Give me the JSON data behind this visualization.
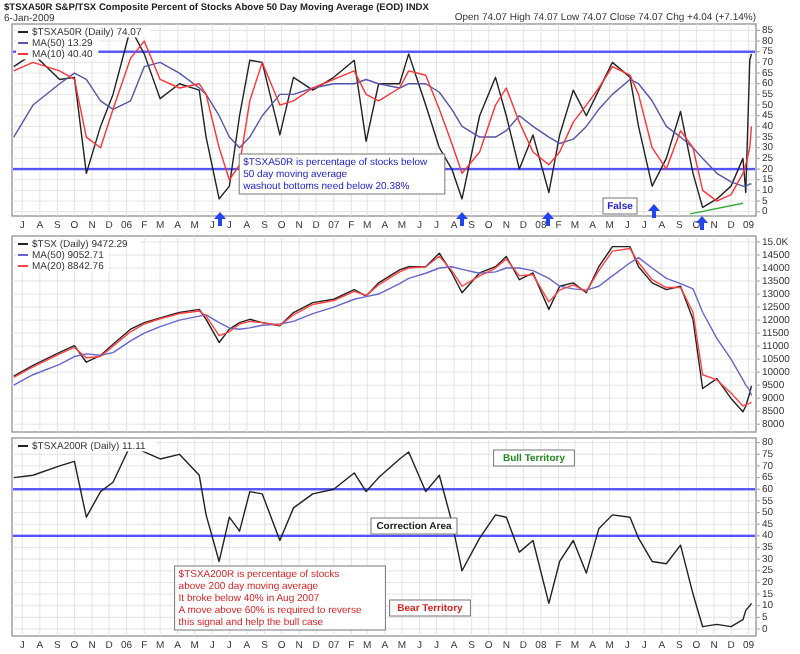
{
  "chart_data": [
    {
      "type": "line",
      "title": "$TSXA50R S&P/TSX Composite Percent of Stocks Above 50 Day Moving Average (EOD) INDX",
      "subtitle": "6-Jan-2009",
      "annotations": [
        "Open 74.07 High 74.07 Low 74.07 Close 74.07 Chg +4.04 (+7.14%)",
        "$TSXA50R is percentage of stocks below\n50 day moving average\nwashout bottoms need below 20.38%",
        "False"
      ],
      "x": [
        "2005-06-16",
        "2005-07-20",
        "2005-09-05",
        "2005-10-01",
        "2005-10-22",
        "2005-11-16",
        "2005-12-08",
        "2006-01-08",
        "2006-02-01",
        "2006-03-01",
        "2006-04-04",
        "2006-05-09",
        "2006-05-21",
        "2006-06-13",
        "2006-07-01",
        "2006-07-19",
        "2006-08-06",
        "2006-08-28",
        "2006-09-28",
        "2006-10-22",
        "2006-11-25",
        "2007-01-01",
        "2007-02-06",
        "2007-02-27",
        "2007-03-21",
        "2007-04-27",
        "2007-05-13",
        "2007-06-12",
        "2007-07-06",
        "2007-07-28",
        "2007-08-15",
        "2007-09-15",
        "2007-10-13",
        "2007-11-01",
        "2007-11-24",
        "2007-12-18",
        "2008-01-15",
        "2008-02-03",
        "2008-02-27",
        "2008-03-21",
        "2008-04-12",
        "2008-05-06",
        "2008-06-06",
        "2008-06-21",
        "2008-07-15",
        "2008-08-09",
        "2008-09-03",
        "2008-09-25",
        "2008-10-12",
        "2008-11-06",
        "2008-12-01",
        "2008-12-22",
        "2008-12-27",
        "2009-01-03",
        "2009-01-06"
      ],
      "series": [
        {
          "name": "$TSXA50R (Daily) 74.07",
          "color": "#222222",
          "values": [
            68,
            74,
            62,
            63,
            18,
            40,
            55,
            86,
            74,
            53,
            60,
            57,
            35,
            6,
            12,
            45,
            71,
            70,
            36,
            63,
            57,
            63,
            71,
            33,
            60,
            60,
            74,
            50,
            30,
            20,
            6,
            45,
            63,
            45,
            20,
            36,
            9,
            36,
            57,
            45,
            57,
            70,
            63,
            40,
            12,
            25,
            47,
            18,
            2,
            6,
            12,
            25,
            9,
            71,
            74
          ]
        },
        {
          "name": "MA(50) 13.29",
          "color": "#5555aa",
          "values": [
            35,
            50,
            60,
            65,
            62,
            52,
            48,
            52,
            68,
            70,
            65,
            58,
            55,
            45,
            35,
            30,
            35,
            45,
            55,
            55,
            58,
            60,
            60,
            62,
            60,
            58,
            60,
            60,
            56,
            48,
            40,
            35,
            35,
            38,
            45,
            40,
            35,
            32,
            34,
            40,
            48,
            55,
            62,
            60,
            52,
            40,
            35,
            30,
            25,
            18,
            14,
            12,
            12,
            13,
            13
          ]
        },
        {
          "name": "MA(10) 40.40",
          "color": "#ff3333",
          "values": [
            66,
            70,
            66,
            62,
            35,
            30,
            48,
            72,
            80,
            62,
            58,
            60,
            55,
            30,
            15,
            22,
            52,
            70,
            50,
            52,
            58,
            62,
            66,
            55,
            52,
            58,
            66,
            64,
            48,
            32,
            18,
            28,
            50,
            58,
            42,
            28,
            22,
            28,
            42,
            50,
            58,
            68,
            64,
            55,
            30,
            20,
            38,
            30,
            10,
            5,
            8,
            18,
            22,
            30,
            40
          ]
        },
        {
          "type": "line",
          "color": "#33aa33",
          "x": [
            "2008-09-20",
            "2008-12-22"
          ],
          "values": [
            -1,
            4
          ]
        }
      ],
      "xlim": [
        "2005-06-13",
        "2009-01-14"
      ],
      "ylim": [
        -2,
        88
      ],
      "xticks": [
        {
          "value": "2005-07-01",
          "label": "J"
        },
        {
          "value": "2005-08-01",
          "label": "A"
        },
        {
          "value": "2005-09-01",
          "label": "S"
        },
        {
          "value": "2005-10-01",
          "label": "O"
        },
        {
          "value": "2005-11-01",
          "label": "N"
        },
        {
          "value": "2005-12-01",
          "label": "D"
        },
        {
          "value": "2006-01-01",
          "label": "06"
        },
        {
          "value": "2006-02-01",
          "label": "F"
        },
        {
          "value": "2006-03-01",
          "label": "M"
        },
        {
          "value": "2006-04-01",
          "label": "A"
        },
        {
          "value": "2006-05-01",
          "label": "M"
        },
        {
          "value": "2006-06-01",
          "label": "J"
        },
        {
          "value": "2006-07-01",
          "label": "J"
        },
        {
          "value": "2006-08-01",
          "label": "A"
        },
        {
          "value": "2006-09-01",
          "label": "S"
        },
        {
          "value": "2006-10-01",
          "label": "O"
        },
        {
          "value": "2006-11-01",
          "label": "N"
        },
        {
          "value": "2006-12-01",
          "label": "D"
        },
        {
          "value": "2007-01-01",
          "label": "07"
        },
        {
          "value": "2007-02-01",
          "label": "F"
        },
        {
          "value": "2007-03-01",
          "label": "M"
        },
        {
          "value": "2007-04-01",
          "label": "A"
        },
        {
          "value": "2007-05-01",
          "label": "M"
        },
        {
          "value": "2007-06-01",
          "label": "J"
        },
        {
          "value": "2007-07-01",
          "label": "J"
        },
        {
          "value": "2007-08-01",
          "label": "A"
        },
        {
          "value": "2007-09-01",
          "label": "S"
        },
        {
          "value": "2007-10-01",
          "label": "O"
        },
        {
          "value": "2007-11-01",
          "label": "N"
        },
        {
          "value": "2007-12-01",
          "label": "D"
        },
        {
          "value": "2008-01-01",
          "label": "08"
        },
        {
          "value": "2008-02-01",
          "label": "F"
        },
        {
          "value": "2008-03-01",
          "label": "M"
        },
        {
          "value": "2008-04-01",
          "label": "A"
        },
        {
          "value": "2008-05-01",
          "label": "M"
        },
        {
          "value": "2008-06-01",
          "label": "J"
        },
        {
          "value": "2008-07-01",
          "label": "J"
        },
        {
          "value": "2008-08-01",
          "label": "A"
        },
        {
          "value": "2008-09-01",
          "label": "S"
        },
        {
          "value": "2008-10-01",
          "label": "O"
        },
        {
          "value": "2008-11-01",
          "label": "N"
        },
        {
          "value": "2008-12-01",
          "label": "D"
        },
        {
          "value": "2009-01-01",
          "label": "09"
        }
      ],
      "yticks": [
        0,
        5,
        10,
        15,
        20,
        25,
        30,
        35,
        40,
        45,
        50,
        55,
        60,
        65,
        70,
        75,
        80,
        85
      ],
      "ref_lines": [
        {
          "axis": "y",
          "value": 75,
          "color": "#5555ff"
        },
        {
          "axis": "y",
          "value": 20,
          "color": "#5555ff"
        }
      ],
      "grid": true,
      "legend": "top left"
    },
    {
      "type": "line",
      "x": [
        "2005-06-16",
        "2005-07-20",
        "2005-09-05",
        "2005-10-01",
        "2005-10-22",
        "2005-11-16",
        "2005-12-08",
        "2006-01-08",
        "2006-02-01",
        "2006-03-01",
        "2006-04-04",
        "2006-05-09",
        "2006-05-21",
        "2006-06-13",
        "2006-07-01",
        "2006-07-19",
        "2006-08-06",
        "2006-08-28",
        "2006-09-28",
        "2006-10-22",
        "2006-11-25",
        "2007-01-01",
        "2007-02-06",
        "2007-02-27",
        "2007-03-21",
        "2007-04-27",
        "2007-05-13",
        "2007-06-12",
        "2007-07-06",
        "2007-07-28",
        "2007-08-15",
        "2007-09-15",
        "2007-10-13",
        "2007-11-01",
        "2007-11-24",
        "2007-12-18",
        "2008-01-15",
        "2008-02-03",
        "2008-02-27",
        "2008-03-21",
        "2008-04-12",
        "2008-05-06",
        "2008-06-06",
        "2008-06-21",
        "2008-07-15",
        "2008-08-09",
        "2008-09-03",
        "2008-09-25",
        "2008-10-12",
        "2008-11-06",
        "2008-12-01",
        "2008-12-22",
        "2008-12-27",
        "2009-01-03",
        "2009-01-06"
      ],
      "series": [
        {
          "name": "$TSX (Daily) 9472.29",
          "color": "#222222",
          "values": [
            9850,
            10260,
            10760,
            11020,
            10380,
            10640,
            11070,
            11650,
            11900,
            12080,
            12290,
            12410,
            12030,
            11140,
            11650,
            11900,
            12030,
            11900,
            11780,
            12290,
            12670,
            12800,
            13170,
            12920,
            13430,
            13930,
            14050,
            14050,
            14570,
            13810,
            13050,
            13810,
            14050,
            14440,
            13550,
            13810,
            12410,
            13300,
            13430,
            13050,
            14050,
            14820,
            14820,
            14050,
            13430,
            13170,
            13300,
            12030,
            9370,
            9750,
            8990,
            8480,
            8700,
            9200,
            9470
          ]
        },
        {
          "name": "MA(50) 9052.71",
          "color": "#6666cc",
          "values": [
            9500,
            9900,
            10300,
            10600,
            10700,
            10650,
            10750,
            11200,
            11500,
            11750,
            12000,
            12150,
            12200,
            11900,
            11700,
            11650,
            11700,
            11800,
            11850,
            11950,
            12250,
            12500,
            12800,
            12900,
            13000,
            13400,
            13600,
            13800,
            14000,
            14050,
            13950,
            13800,
            13850,
            14000,
            14000,
            13900,
            13600,
            13300,
            13200,
            13150,
            13300,
            13700,
            14200,
            14400,
            14000,
            13600,
            13400,
            13200,
            12300,
            11300,
            10500,
            9700,
            9500,
            9300,
            9100
          ]
        },
        {
          "name": "MA(20) 8842.76",
          "color": "#ff4444",
          "values": [
            9800,
            10200,
            10700,
            10950,
            10550,
            10600,
            11000,
            11550,
            11850,
            12050,
            12250,
            12350,
            12150,
            11400,
            11550,
            11850,
            11950,
            11900,
            11800,
            12200,
            12600,
            12750,
            13100,
            12950,
            13350,
            13850,
            14000,
            14050,
            14450,
            13900,
            13300,
            13700,
            14000,
            14350,
            13700,
            13750,
            12700,
            13150,
            13350,
            13100,
            13900,
            14650,
            14750,
            14200,
            13550,
            13250,
            13250,
            12300,
            9900,
            9700,
            9200,
            8700,
            8750,
            8800,
            8850
          ]
        }
      ],
      "xlim": [
        "2005-06-13",
        "2009-01-14"
      ],
      "ylim": [
        7700,
        15230
      ],
      "xticks": [
        {
          "value": "2005-07-01",
          "label": null
        },
        {
          "value": "2005-08-01",
          "label": null
        },
        {
          "value": "2005-09-01",
          "label": null
        },
        {
          "value": "2005-10-01",
          "label": null
        },
        {
          "value": "2005-11-01",
          "label": null
        },
        {
          "value": "2005-12-01",
          "label": null
        },
        {
          "value": "2006-01-01",
          "label": null
        },
        {
          "value": "2006-02-01",
          "label": null
        },
        {
          "value": "2006-03-01",
          "label": null
        },
        {
          "value": "2006-04-01",
          "label": null
        },
        {
          "value": "2006-05-01",
          "label": null
        },
        {
          "value": "2006-06-01",
          "label": null
        },
        {
          "value": "2006-07-01",
          "label": null
        },
        {
          "value": "2006-08-01",
          "label": null
        },
        {
          "value": "2006-09-01",
          "label": null
        },
        {
          "value": "2006-10-01",
          "label": null
        },
        {
          "value": "2006-11-01",
          "label": null
        },
        {
          "value": "2006-12-01",
          "label": null
        },
        {
          "value": "2007-01-01",
          "label": null
        },
        {
          "value": "2007-02-01",
          "label": null
        },
        {
          "value": "2007-03-01",
          "label": null
        },
        {
          "value": "2007-04-01",
          "label": null
        },
        {
          "value": "2007-05-01",
          "label": null
        },
        {
          "value": "2007-06-01",
          "label": null
        },
        {
          "value": "2007-07-01",
          "label": null
        },
        {
          "value": "2007-08-01",
          "label": null
        },
        {
          "value": "2007-09-01",
          "label": null
        },
        {
          "value": "2007-10-01",
          "label": null
        },
        {
          "value": "2007-11-01",
          "label": null
        },
        {
          "value": "2007-12-01",
          "label": null
        },
        {
          "value": "2008-01-01",
          "label": null
        },
        {
          "value": "2008-02-01",
          "label": null
        },
        {
          "value": "2008-03-01",
          "label": null
        },
        {
          "value": "2008-04-01",
          "label": null
        },
        {
          "value": "2008-05-01",
          "label": null
        },
        {
          "value": "2008-06-01",
          "label": null
        },
        {
          "value": "2008-07-01",
          "label": null
        },
        {
          "value": "2008-08-01",
          "label": null
        },
        {
          "value": "2008-09-01",
          "label": null
        },
        {
          "value": "2008-10-01",
          "label": null
        },
        {
          "value": "2008-11-01",
          "label": null
        },
        {
          "value": "2008-12-01",
          "label": null
        },
        {
          "value": "2009-01-01",
          "label": null
        }
      ],
      "yticks": [
        8000,
        8500,
        9000,
        9500,
        10000,
        10500,
        11000,
        11500,
        12000,
        12500,
        13000,
        13500,
        14000,
        14500,
        {
          "value": 15000,
          "label": "15.0K"
        }
      ],
      "tick_labels": "y",
      "grid": true,
      "legend": "top left"
    },
    {
      "type": "line",
      "annotations": [
        "Bull Territory",
        "Correction Area",
        "Bear Territory",
        "$TSXA200R is percentage of stocks\nabove 200 day moving average\nIt broke below 40% in Aug 2007\nA move above 60% is required to reverse\nthis signal and help the bull case"
      ],
      "x": [
        "2005-06-16",
        "2005-07-20",
        "2005-09-05",
        "2005-10-01",
        "2005-10-22",
        "2005-11-16",
        "2005-12-08",
        "2006-01-08",
        "2006-02-01",
        "2006-03-01",
        "2006-04-04",
        "2006-05-09",
        "2006-05-21",
        "2006-06-13",
        "2006-07-01",
        "2006-07-19",
        "2006-08-06",
        "2006-08-28",
        "2006-09-28",
        "2006-10-22",
        "2006-11-25",
        "2007-01-01",
        "2007-02-06",
        "2007-02-27",
        "2007-03-21",
        "2007-04-27",
        "2007-05-13",
        "2007-06-12",
        "2007-07-06",
        "2007-07-28",
        "2007-08-15",
        "2007-09-15",
        "2007-10-13",
        "2007-11-01",
        "2007-11-24",
        "2007-12-18",
        "2008-01-15",
        "2008-02-03",
        "2008-02-27",
        "2008-03-21",
        "2008-04-12",
        "2008-05-06",
        "2008-06-06",
        "2008-06-21",
        "2008-07-15",
        "2008-08-09",
        "2008-09-03",
        "2008-09-25",
        "2008-10-12",
        "2008-11-06",
        "2008-12-01",
        "2008-12-22",
        "2008-12-27",
        "2009-01-03",
        "2009-01-06"
      ],
      "series": [
        {
          "name": "$TSXA200R (Daily) 11.11",
          "color": "#222222",
          "values": [
            65,
            66,
            70,
            72,
            48,
            59,
            63,
            79,
            76,
            73,
            75,
            66,
            49,
            29,
            48,
            42,
            59,
            58,
            38,
            52,
            58,
            60,
            67,
            59,
            65,
            73,
            76,
            59,
            66,
            46,
            25,
            39,
            49,
            48,
            33,
            38,
            11,
            29,
            38,
            24,
            43,
            49,
            48,
            39,
            29,
            28,
            36,
            15,
            1,
            2,
            1,
            4,
            8,
            10,
            11
          ]
        }
      ],
      "xlim": [
        "2005-06-13",
        "2009-01-14"
      ],
      "ylim": [
        -3,
        82
      ],
      "xticks": [
        {
          "value": "2005-07-01",
          "label": "J"
        },
        {
          "value": "2005-08-01",
          "label": "A"
        },
        {
          "value": "2005-09-01",
          "label": "S"
        },
        {
          "value": "2005-10-01",
          "label": "O"
        },
        {
          "value": "2005-11-01",
          "label": "N"
        },
        {
          "value": "2005-12-01",
          "label": "D"
        },
        {
          "value": "2006-01-01",
          "label": "06"
        },
        {
          "value": "2006-02-01",
          "label": "F"
        },
        {
          "value": "2006-03-01",
          "label": "M"
        },
        {
          "value": "2006-04-01",
          "label": "A"
        },
        {
          "value": "2006-05-01",
          "label": "M"
        },
        {
          "value": "2006-06-01",
          "label": "J"
        },
        {
          "value": "2006-07-01",
          "label": "J"
        },
        {
          "value": "2006-08-01",
          "label": "A"
        },
        {
          "value": "2006-09-01",
          "label": "S"
        },
        {
          "value": "2006-10-01",
          "label": "O"
        },
        {
          "value": "2006-11-01",
          "label": "N"
        },
        {
          "value": "2006-12-01",
          "label": "D"
        },
        {
          "value": "2007-01-01",
          "label": "07"
        },
        {
          "value": "2007-02-01",
          "label": "F"
        },
        {
          "value": "2007-03-01",
          "label": "M"
        },
        {
          "value": "2007-04-01",
          "label": "A"
        },
        {
          "value": "2007-05-01",
          "label": "M"
        },
        {
          "value": "2007-06-01",
          "label": "J"
        },
        {
          "value": "2007-07-01",
          "label": "J"
        },
        {
          "value": "2007-08-01",
          "label": "A"
        },
        {
          "value": "2007-09-01",
          "label": "S"
        },
        {
          "value": "2007-10-01",
          "label": "O"
        },
        {
          "value": "2007-11-01",
          "label": "N"
        },
        {
          "value": "2007-12-01",
          "label": "D"
        },
        {
          "value": "2008-01-01",
          "label": "08"
        },
        {
          "value": "2008-02-01",
          "label": "F"
        },
        {
          "value": "2008-03-01",
          "label": "M"
        },
        {
          "value": "2008-04-01",
          "label": "A"
        },
        {
          "value": "2008-05-01",
          "label": "M"
        },
        {
          "value": "2008-06-01",
          "label": "J"
        },
        {
          "value": "2008-07-01",
          "label": "J"
        },
        {
          "value": "2008-08-01",
          "label": "A"
        },
        {
          "value": "2008-09-01",
          "label": "S"
        },
        {
          "value": "2008-10-01",
          "label": "O"
        },
        {
          "value": "2008-11-01",
          "label": "N"
        },
        {
          "value": "2008-12-01",
          "label": "D"
        },
        {
          "value": "2009-01-01",
          "label": "09"
        }
      ],
      "yticks": [
        0,
        5,
        10,
        15,
        20,
        25,
        30,
        35,
        40,
        45,
        50,
        55,
        60,
        65,
        70,
        75,
        80
      ],
      "ref_lines": [
        {
          "axis": "y",
          "value": 60,
          "color": "#5555ff"
        },
        {
          "axis": "y",
          "value": 40,
          "color": "#5555ff"
        }
      ],
      "grid": true,
      "legend": "top left"
    }
  ]
}
